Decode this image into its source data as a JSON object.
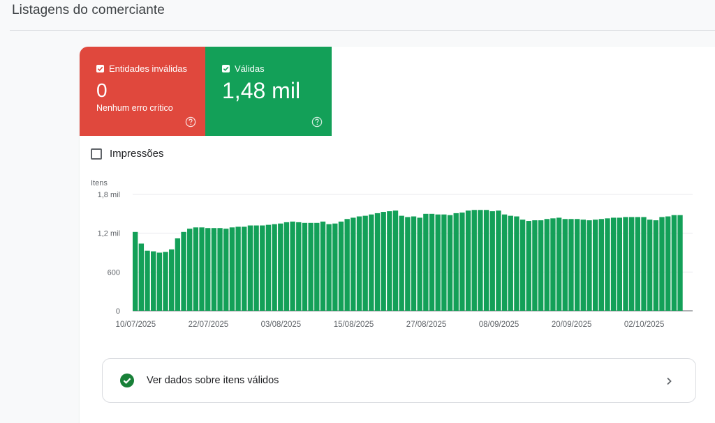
{
  "page_title": "Listagens do comerciante",
  "tiles": {
    "invalid": {
      "label": "Entidades inválidas",
      "value": "0",
      "subtitle": "Nenhum erro crítico",
      "color": "#e0483d"
    },
    "valid": {
      "label": "Válidas",
      "value": "1,48 mil",
      "color": "#13a058"
    }
  },
  "impressions": {
    "label": "Impressões",
    "checked": false
  },
  "chart_data": {
    "type": "bar",
    "ylabel": "Itens",
    "y_ticks": [
      "0",
      "600",
      "1,2 mil",
      "1,8 mil"
    ],
    "ylim": [
      0,
      1800
    ],
    "x_tick_labels": [
      "10/07/2025",
      "22/07/2025",
      "03/08/2025",
      "15/08/2025",
      "27/08/2025",
      "08/09/2025",
      "20/09/2025",
      "02/10/2025"
    ],
    "bar_color": "#13a058",
    "grid": true,
    "start_date": "10/07/2025",
    "values": [
      1220,
      1040,
      930,
      920,
      900,
      910,
      950,
      1120,
      1220,
      1270,
      1290,
      1290,
      1280,
      1280,
      1280,
      1270,
      1290,
      1300,
      1300,
      1320,
      1320,
      1320,
      1330,
      1340,
      1350,
      1370,
      1380,
      1370,
      1360,
      1360,
      1360,
      1380,
      1340,
      1350,
      1380,
      1420,
      1440,
      1460,
      1470,
      1490,
      1510,
      1530,
      1540,
      1550,
      1470,
      1450,
      1460,
      1440,
      1500,
      1500,
      1490,
      1490,
      1480,
      1510,
      1520,
      1550,
      1560,
      1560,
      1560,
      1540,
      1550,
      1490,
      1470,
      1460,
      1410,
      1390,
      1400,
      1400,
      1420,
      1430,
      1440,
      1420,
      1420,
      1420,
      1410,
      1400,
      1410,
      1420,
      1430,
      1440,
      1440,
      1450,
      1450,
      1450,
      1450,
      1410,
      1400,
      1450,
      1460,
      1480,
      1480
    ]
  },
  "valid_link": {
    "label": "Ver dados sobre itens válidos"
  }
}
